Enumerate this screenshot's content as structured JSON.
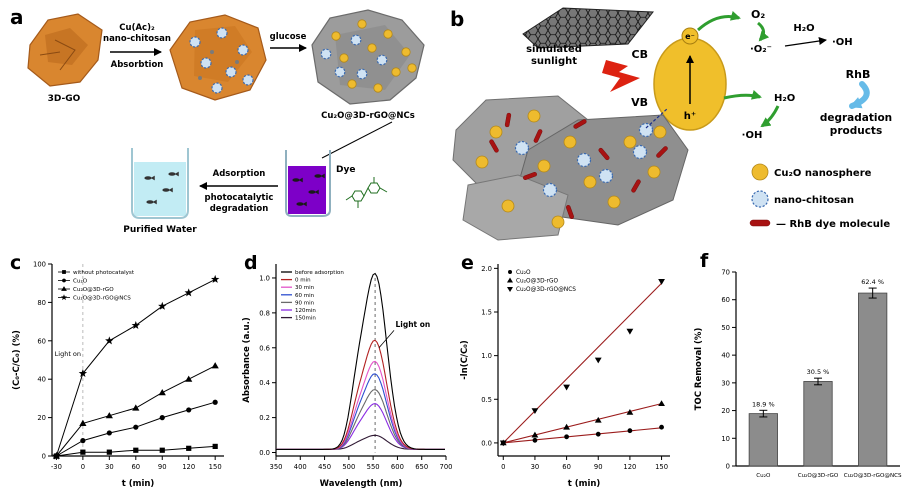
{
  "figure": {
    "panel_labels": {
      "a": "a",
      "b": "b",
      "c": "c",
      "d": "d",
      "e": "e",
      "f": "f"
    }
  },
  "panel_a": {
    "go_label": "3D-GO",
    "step1_line1": "Cu(Ac)₂",
    "step1_line2": "nano-chitosan",
    "step1_line3": "Absorbtion",
    "step2_label": "glucose",
    "product_label": "Cu₂O@3D-rGO@NCs",
    "process_line1": "Adsorption",
    "process_line2": "photocatalytic",
    "process_line3": "degradation",
    "dye_label": "Dye",
    "water_label": "Purified Water"
  },
  "panel_b": {
    "sunlight_line1": "simulated",
    "sunlight_line2": "sunlight",
    "cb": "CB",
    "vb": "VB",
    "electron": "e⁻",
    "hole": "h⁺",
    "o2": "O₂",
    "superoxide": "·O₂⁻",
    "h2o_top": "H₂O",
    "oh_top": "·OH",
    "h2o_mid": "H₂O",
    "oh_mid": "·OH",
    "rhb": "RhB",
    "deg_line1": "degradation",
    "deg_line2": "products",
    "legend_cu2o": "Cu₂O nanosphere",
    "legend_ncs": "nano-chitosan",
    "legend_rhb": "— RhB dye molecule"
  },
  "chart_data": [
    {
      "id": "c",
      "type": "line",
      "xlabel": "t (min)",
      "ylabel": "(C₀-C/C₀) (%)",
      "xlim": [
        -35,
        160
      ],
      "ylim": [
        0,
        100
      ],
      "xticks": [
        -30,
        0,
        30,
        60,
        90,
        120,
        150
      ],
      "yticks": [
        0,
        20,
        40,
        60,
        80,
        100
      ],
      "annotation": {
        "text": "Light on",
        "x": -32,
        "y": 52,
        "line_x": 0
      },
      "x": [
        -30,
        0,
        30,
        60,
        90,
        120,
        150
      ],
      "series": [
        {
          "name": "without photocatalyst",
          "marker": "square",
          "color": "#000000",
          "values": [
            0,
            2,
            2,
            3,
            3,
            4,
            5
          ]
        },
        {
          "name": "Cu₂O",
          "marker": "circle",
          "color": "#000000",
          "values": [
            0,
            8,
            12,
            15,
            20,
            24,
            28
          ]
        },
        {
          "name": "Cu₂O@3D-rGO",
          "marker": "triangle-up",
          "color": "#000000",
          "values": [
            0,
            17,
            21,
            25,
            33,
            40,
            47
          ]
        },
        {
          "name": "Cu₂O@3D-rGO@NCS",
          "marker": "star",
          "color": "#000000",
          "values": [
            0,
            43,
            60,
            68,
            78,
            85,
            92
          ]
        }
      ]
    },
    {
      "id": "d",
      "type": "spectra",
      "xlabel": "Wavelength (nm)",
      "ylabel": "Absorbance (a.u.)",
      "xlim": [
        350,
        700
      ],
      "ylim": [
        -0.02,
        1.08
      ],
      "xticks": [
        350,
        400,
        450,
        500,
        550,
        600,
        650,
        700
      ],
      "yticks": [
        0.0,
        0.2,
        0.4,
        0.6,
        0.8,
        1.0
      ],
      "peak_nm": 554,
      "annotation": {
        "text": "Light on"
      },
      "series": [
        {
          "name": "before adsorption",
          "color": "#000000",
          "peak": 1.0
        },
        {
          "name": "0 min",
          "color": "#b22222",
          "peak": 0.62
        },
        {
          "name": "30 min",
          "color": "#e355c9",
          "peak": 0.5
        },
        {
          "name": "60 min",
          "color": "#2e4fd0",
          "peak": 0.43
        },
        {
          "name": "90 min",
          "color": "#6a6a6a",
          "peak": 0.34
        },
        {
          "name": "120min",
          "color": "#8a2be2",
          "peak": 0.26
        },
        {
          "name": "150min",
          "color": "#301934",
          "peak": 0.08
        }
      ]
    },
    {
      "id": "e",
      "type": "scatter-fit",
      "xlabel": "t (min)",
      "ylabel": "-ln(C/C₀)",
      "xlim": [
        -5,
        158
      ],
      "ylim": [
        -0.15,
        2.05
      ],
      "xticks": [
        0,
        30,
        60,
        90,
        120,
        150
      ],
      "yticks": [
        0.0,
        0.5,
        1.0,
        1.5,
        2.0
      ],
      "fit_color": "#9b1c1c",
      "x": [
        0,
        30,
        60,
        90,
        120,
        150
      ],
      "series": [
        {
          "name": "Cu₂O",
          "marker": "circle",
          "slope": 0.00115,
          "values": [
            0,
            0.03,
            0.07,
            0.1,
            0.14,
            0.18
          ]
        },
        {
          "name": "Cu₂O@3D-rGO",
          "marker": "triangle-up",
          "slope": 0.003,
          "values": [
            0,
            0.09,
            0.18,
            0.26,
            0.35,
            0.45
          ]
        },
        {
          "name": "Cu₂O@3D-rGO@NCS",
          "marker": "triangle-down",
          "slope": 0.0122,
          "values": [
            0,
            0.37,
            0.64,
            0.95,
            1.28,
            1.85
          ]
        }
      ]
    },
    {
      "id": "f",
      "type": "bar",
      "xlabel": "",
      "ylabel": "TOC Removal (%)",
      "categories": [
        "Cu₂O",
        "Cu₂O@3D-rGO",
        "Cu₂O@3D-rGO@NCS"
      ],
      "values": [
        18.9,
        30.5,
        62.4
      ],
      "value_labels": [
        "18.9 %",
        "30.5 %",
        "62.4 %"
      ],
      "errors": [
        1.2,
        1.2,
        1.8
      ],
      "ylim": [
        0,
        70
      ],
      "yticks": [
        0,
        10,
        20,
        30,
        40,
        50,
        60,
        70
      ],
      "bar_color": "#8c8c8c"
    }
  ]
}
